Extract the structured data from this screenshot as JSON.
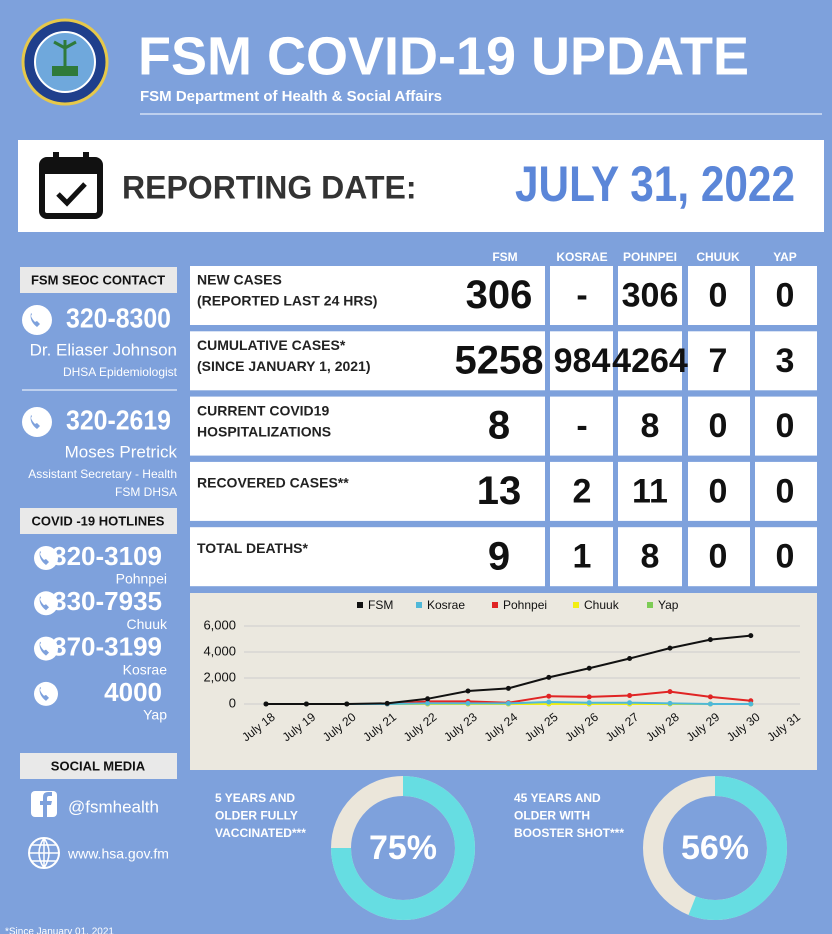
{
  "header": {
    "title": "FSM COVID-19 UPDATE",
    "subtitle": "FSM Department of Health & Social Affairs"
  },
  "reporting": {
    "label": "REPORTING DATE:",
    "date": "JULY 31, 2022"
  },
  "contact": {
    "title": "FSM SEOC CONTACT",
    "people": [
      {
        "phone": "320-8300",
        "name": "Dr. Eliaser Johnson",
        "role": [
          "DHSA Epidemiologist"
        ]
      },
      {
        "phone": "320-2619",
        "name": "Moses Pretrick",
        "role": [
          "Assistant Secretary - Health",
          "FSM DHSA"
        ]
      }
    ]
  },
  "hotlines": {
    "title": "COVID -19 HOTLINES",
    "items": [
      {
        "phone": "320-3109",
        "place": "Pohnpei"
      },
      {
        "phone": "330-7935",
        "place": "Chuuk"
      },
      {
        "phone": "370-3199",
        "place": "Kosrae"
      },
      {
        "phone": "4000",
        "place": "Yap"
      }
    ]
  },
  "social": {
    "title": "SOCIAL MEDIA",
    "facebook": "@fsmhealth",
    "website": "www.hsa.gov.fm"
  },
  "table": {
    "columns": [
      "FSM",
      "KOSRAE",
      "POHNPEI",
      "CHUUK",
      "YAP"
    ],
    "rows": [
      {
        "label": [
          "NEW CASES",
          "(REPORTED LAST 24 HRS)"
        ],
        "values": [
          "306",
          "-",
          "306",
          "0",
          "0"
        ]
      },
      {
        "label": [
          "CUMULATIVE CASES*",
          "(SINCE JANUARY 1, 2021)"
        ],
        "values": [
          "5258",
          "984",
          "4264",
          "7",
          "3"
        ]
      },
      {
        "label": [
          "CURRENT COVID19",
          "HOSPITALIZATIONS"
        ],
        "values": [
          "8",
          "-",
          "8",
          "0",
          "0"
        ]
      },
      {
        "label": [
          "RECOVERED CASES**"
        ],
        "values": [
          "13",
          "2",
          "11",
          "0",
          "0"
        ]
      },
      {
        "label": [
          "TOTAL DEATHS*"
        ],
        "values": [
          "9",
          "1",
          "8",
          "0",
          "0"
        ]
      }
    ]
  },
  "chart_data": {
    "type": "line",
    "categories": [
      "July 18",
      "July 19",
      "July 20",
      "July 21",
      "July 22",
      "July 23",
      "July 24",
      "July 25",
      "July 26",
      "July 27",
      "July 28",
      "July 29",
      "July 30",
      "July 31"
    ],
    "series": [
      {
        "name": "FSM",
        "color": "#111111",
        "values": [
          0,
          0,
          0,
          50,
          400,
          1000,
          1200,
          2050,
          2750,
          3500,
          4300,
          4950,
          5258,
          null
        ]
      },
      {
        "name": "Kosrae",
        "color": "#4fb8d8",
        "values": [
          0,
          0,
          0,
          0,
          50,
          50,
          50,
          150,
          100,
          100,
          50,
          0,
          0,
          null
        ]
      },
      {
        "name": "Pohnpei",
        "color": "#e02424",
        "values": [
          0,
          0,
          0,
          0,
          200,
          200,
          100,
          600,
          550,
          650,
          950,
          550,
          250,
          null
        ]
      },
      {
        "name": "Chuuk",
        "color": "#f2ee10",
        "values": [
          0,
          0,
          0,
          0,
          0,
          0,
          0,
          0,
          0,
          0,
          0,
          0,
          0,
          null
        ]
      },
      {
        "name": "Yap",
        "color": "#7ccc55",
        "values": [
          0,
          0,
          0,
          0,
          0,
          0,
          0,
          0,
          0,
          0,
          0,
          0,
          0,
          null
        ]
      }
    ],
    "ylim": [
      0,
      6000
    ],
    "yticks": [
      0,
      {
        "value": 2000,
        "label": "2,000"
      },
      {
        "value": 4000,
        "label": "4,000"
      },
      {
        "value": 6000,
        "label": "6,000"
      }
    ],
    "grid": true,
    "legend": "top"
  },
  "donuts": [
    {
      "label": [
        "5 YEARS AND",
        "OLDER FULLY",
        "VACCINATED***"
      ],
      "value": 75,
      "value_label": "75%"
    },
    {
      "label": [
        "45 YEARS AND",
        "OLDER WITH",
        "BOOSTER SHOT***"
      ],
      "value": 56,
      "value_label": "56%"
    }
  ],
  "footnote": "*Since January 01, 2021"
}
